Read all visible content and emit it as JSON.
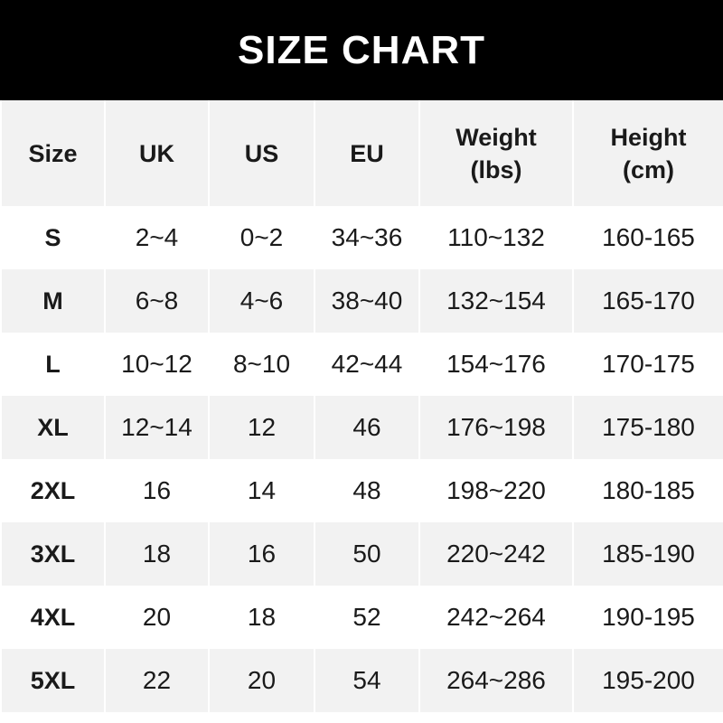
{
  "title": "SIZE CHART",
  "colors": {
    "title_bg": "#000000",
    "stripe": "#f2f2f2",
    "row": "#ffffff"
  },
  "headers": [
    "Size",
    "UK",
    "US",
    "EU",
    "Weight\n(lbs)",
    "Height\n(cm)"
  ],
  "rows": [
    [
      "S",
      "2~4",
      "0~2",
      "34~36",
      "110~132",
      "160-165"
    ],
    [
      "M",
      "6~8",
      "4~6",
      "38~40",
      "132~154",
      "165-170"
    ],
    [
      "L",
      "10~12",
      "8~10",
      "42~44",
      "154~176",
      "170-175"
    ],
    [
      "XL",
      "12~14",
      "12",
      "46",
      "176~198",
      "175-180"
    ],
    [
      "2XL",
      "16",
      "14",
      "48",
      "198~220",
      "180-185"
    ],
    [
      "3XL",
      "18",
      "16",
      "50",
      "220~242",
      "185-190"
    ],
    [
      "4XL",
      "20",
      "18",
      "52",
      "242~264",
      "190-195"
    ],
    [
      "5XL",
      "22",
      "20",
      "54",
      "264~286",
      "195-200"
    ]
  ]
}
